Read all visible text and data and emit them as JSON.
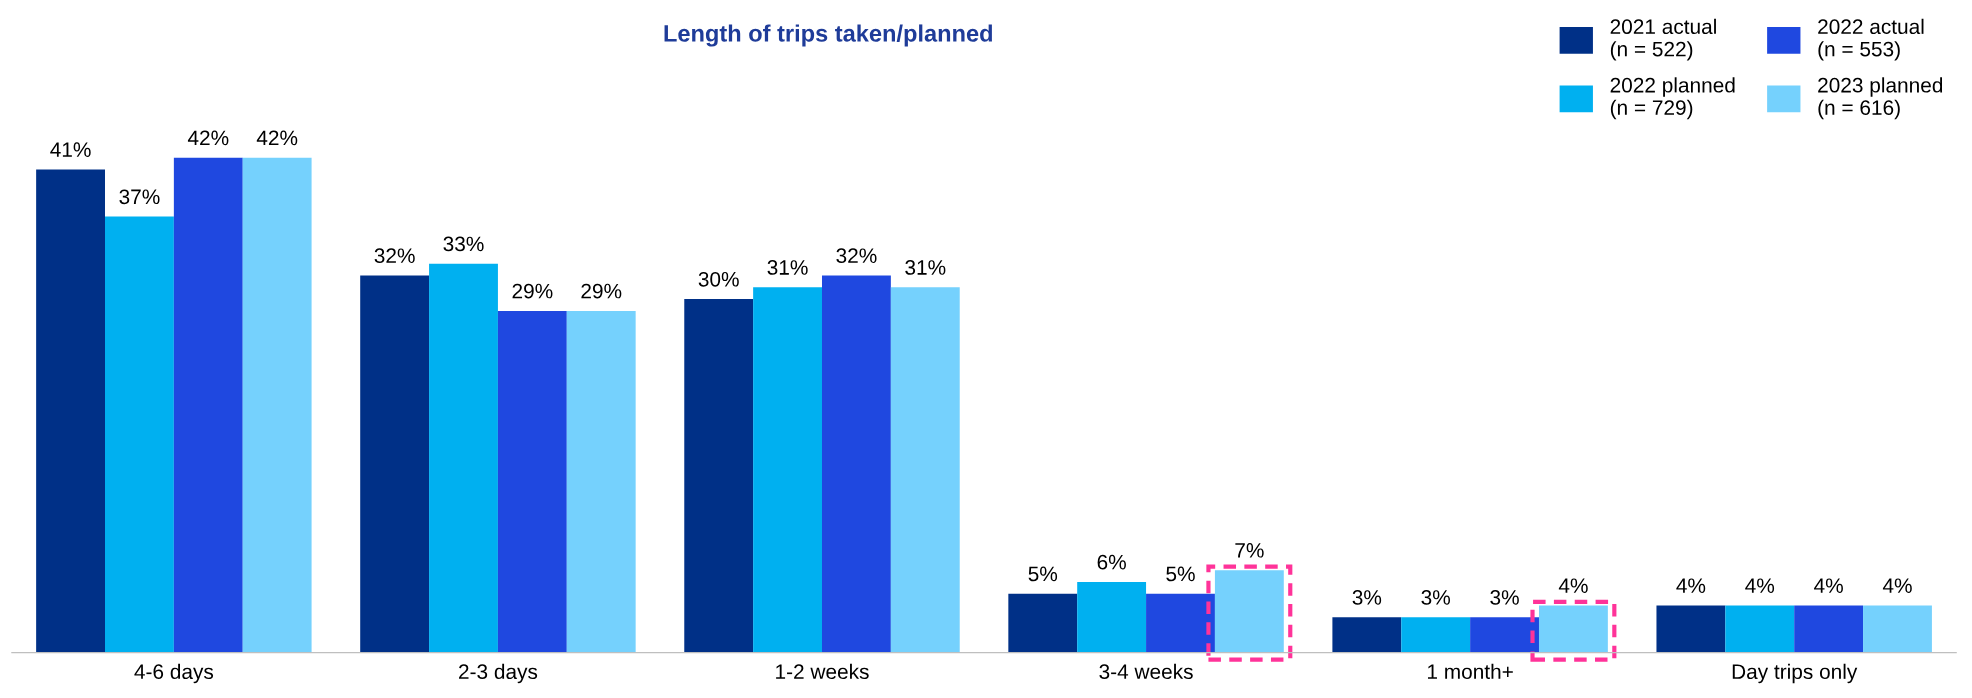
{
  "chart_data": {
    "type": "bar",
    "title": "Length of trips taken/planned",
    "categories": [
      "4-6 days",
      "2-3 days",
      "1-2 weeks",
      "3-4 weeks",
      "1 month+",
      "Day trips only"
    ],
    "series": [
      {
        "name": "2021 actual\n(n = 522)",
        "color": "#003087",
        "values": [
          41,
          32,
          30,
          5,
          3,
          4
        ],
        "value_labels": [
          "41%",
          "32%",
          "30%",
          "5%",
          "3%",
          "4%"
        ]
      },
      {
        "name": "2022 planned\n(n = 729)",
        "color": "#00b0f0",
        "values": [
          37,
          33,
          31,
          6,
          3,
          4
        ],
        "value_labels": [
          "37%",
          "33%",
          "31%",
          "6%",
          "3%",
          "4%"
        ]
      },
      {
        "name": "2022 actual\n(n = 553)",
        "color": "#1f48e0",
        "values": [
          42,
          29,
          32,
          5,
          3,
          4
        ],
        "value_labels": [
          "42%",
          "29%",
          "32%",
          "5%",
          "3%",
          "4%"
        ]
      },
      {
        "name": "2023 planned\n(n = 616)",
        "color": "#75d1fd",
        "values": [
          42,
          29,
          31,
          7,
          4,
          4
        ],
        "value_labels": [
          "42%",
          "29%",
          "31%",
          "7%",
          "4%",
          "4%"
        ]
      }
    ],
    "legend": "top right",
    "grid": false
  }
}
